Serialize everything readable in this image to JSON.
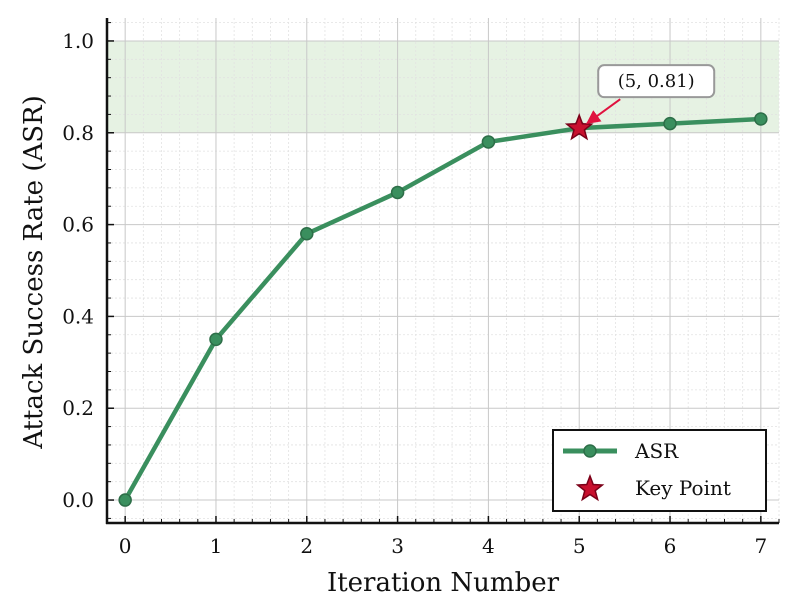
{
  "chart_data": {
    "type": "line",
    "title": "",
    "xlabel": "Iteration Number",
    "ylabel": "Attack Success Rate (ASR)",
    "xlim": [
      -0.2,
      7.2
    ],
    "ylim": [
      -0.05,
      1.05
    ],
    "grid": true,
    "x_ticks": [
      0,
      1,
      2,
      3,
      4,
      5,
      6,
      7
    ],
    "x_tick_labels": [
      "0",
      "1",
      "2",
      "3",
      "4",
      "5",
      "6",
      "7"
    ],
    "y_ticks": [
      0.0,
      0.2,
      0.4,
      0.6,
      0.8,
      1.0
    ],
    "y_tick_labels": [
      "0.0",
      "0.2",
      "0.4",
      "0.6",
      "0.8",
      "1.0"
    ],
    "shaded_band": {
      "y_from": 0.8,
      "y_to": 1.0,
      "color": "#e6f2e3"
    },
    "series": [
      {
        "name": "ASR",
        "color": "#3a8f5e",
        "marker": "circle",
        "x": [
          0,
          1,
          2,
          3,
          4,
          5,
          6,
          7
        ],
        "y": [
          0.0,
          0.35,
          0.58,
          0.67,
          0.78,
          0.81,
          0.82,
          0.83
        ]
      }
    ],
    "key_point": {
      "name": "Key Point",
      "x": 5,
      "y": 0.81,
      "marker": "star",
      "color": "#c8102e",
      "annotation": "(5, 0.81)"
    },
    "legend": {
      "placement": "bottom-right",
      "entries": [
        "ASR",
        "Key Point"
      ]
    }
  }
}
